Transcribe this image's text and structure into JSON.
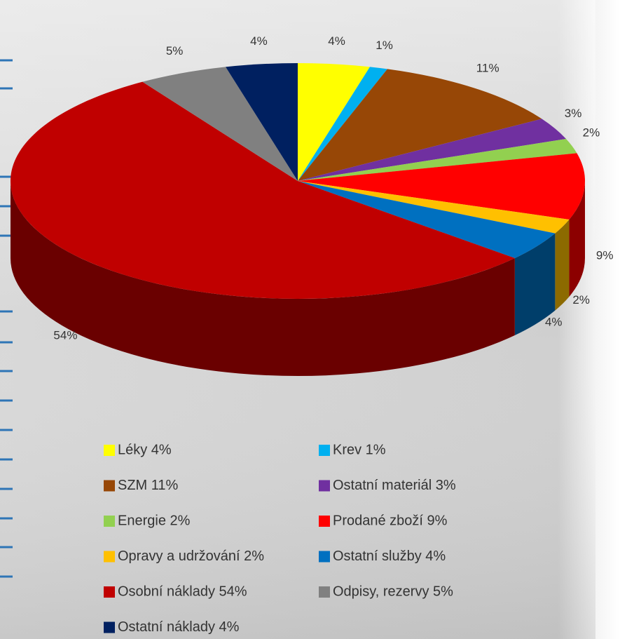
{
  "chart_data": {
    "type": "pie3d",
    "categories": [
      "Léky 4%",
      "Krev 1%",
      "SZM 11%",
      "Ostatní materiál 3%",
      "Energie 2%",
      "Prodané zboží 9%",
      "Opravy a udržování 2%",
      "Ostatní služby 4%",
      "Osobní náklady 54%",
      "Odpisy, rezervy 5%",
      "Ostatní náklady 4%"
    ],
    "values": [
      4,
      1,
      11,
      3,
      2,
      9,
      2,
      4,
      54,
      5,
      4
    ],
    "value_labels": [
      "4%",
      "1%",
      "11%",
      "3%",
      "2%",
      "9%",
      "2%",
      "4%",
      "54%",
      "5%",
      "4%"
    ],
    "colors": [
      "#ffff00",
      "#00b0f0",
      "#974706",
      "#7030a0",
      "#92d050",
      "#ff0000",
      "#ffc000",
      "#0070c0",
      "#c00000",
      "#808080",
      "#002060"
    ],
    "legend": "bottom"
  }
}
